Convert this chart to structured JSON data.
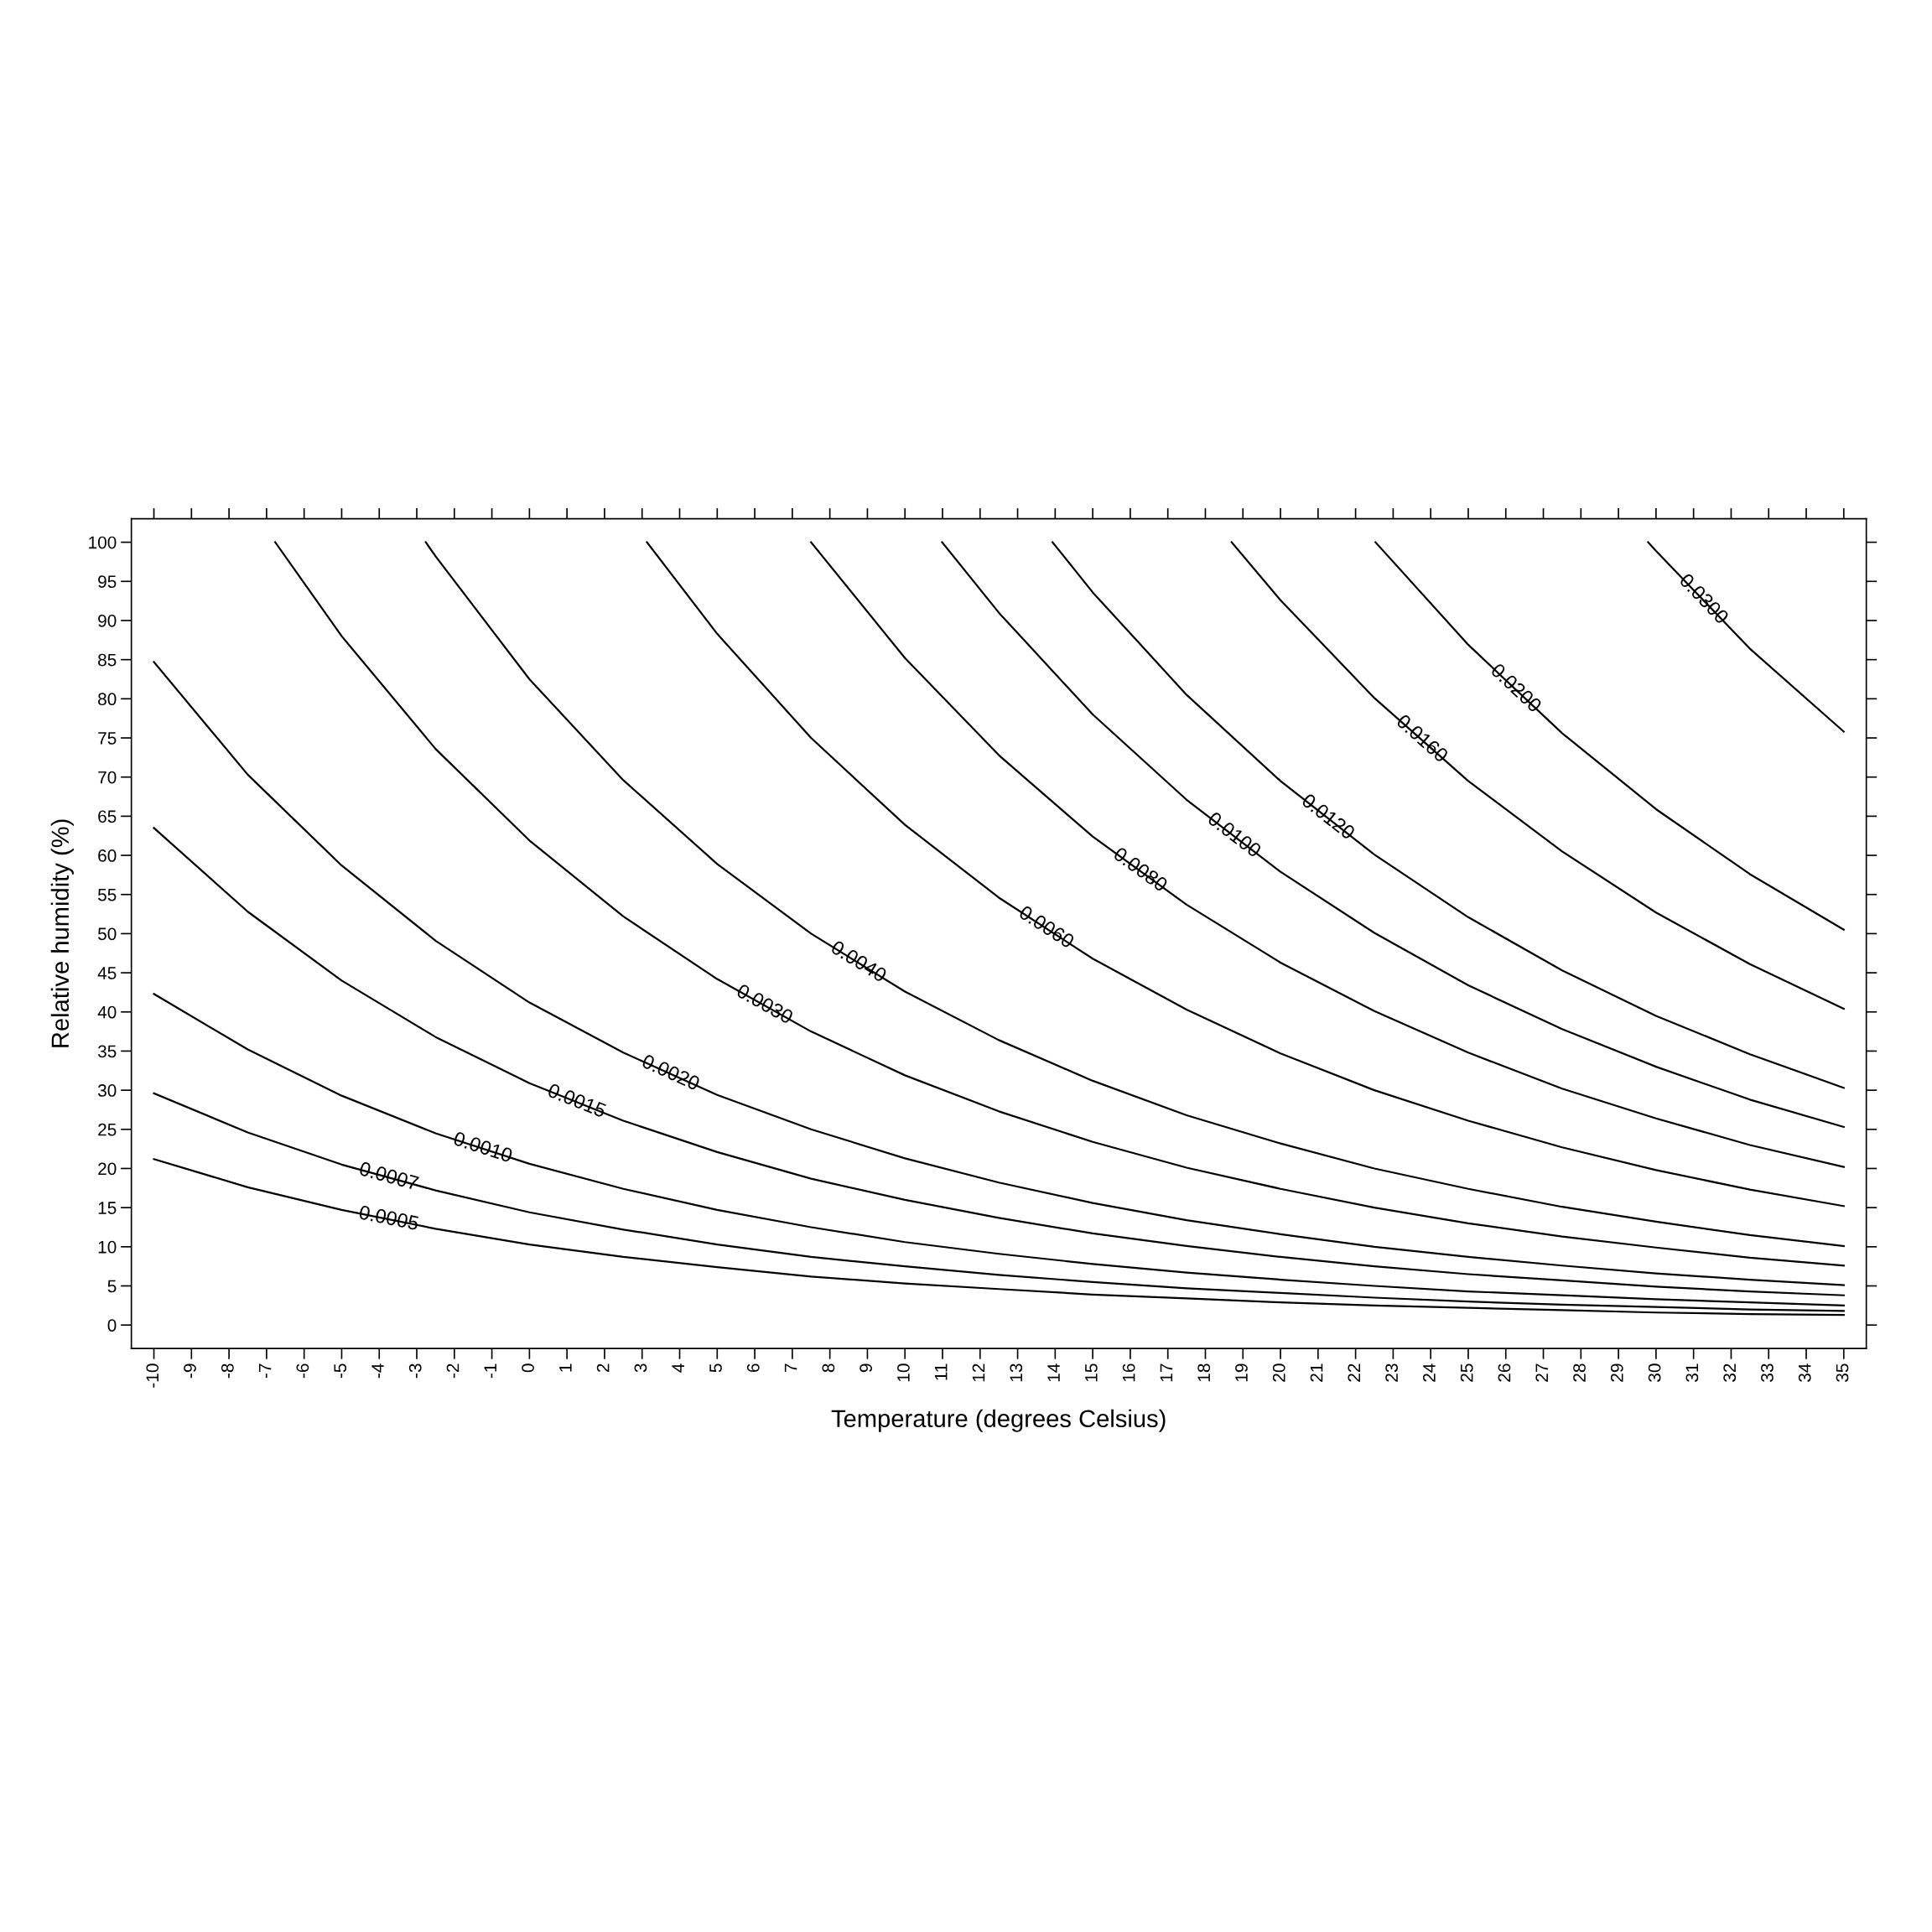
{
  "chart_data": {
    "type": "line",
    "xlabel": "Temperature (degrees Celsius)",
    "ylabel": "Relative humidity (%)",
    "xlim": [
      -10.6,
      35.6
    ],
    "ylim": [
      -3,
      103
    ],
    "xticks": [
      -10,
      -9,
      -8,
      -7,
      -6,
      -5,
      -4,
      -3,
      -2,
      -1,
      0,
      1,
      2,
      3,
      4,
      5,
      6,
      7,
      8,
      9,
      10,
      11,
      12,
      13,
      14,
      15,
      16,
      17,
      18,
      19,
      20,
      21,
      22,
      23,
      24,
      25,
      26,
      27,
      28,
      29,
      30,
      31,
      32,
      33,
      34,
      35
    ],
    "yticks": [
      0,
      5,
      10,
      15,
      20,
      25,
      30,
      35,
      40,
      45,
      50,
      55,
      60,
      65,
      70,
      75,
      80,
      85,
      90,
      95,
      100
    ],
    "grid": false,
    "legend": false,
    "marker": "none",
    "line_style": "solid",
    "series": [
      {
        "name": "0.0005",
        "color": "#000000",
        "x": [
          -10,
          -7.5,
          -5,
          -2.5,
          0,
          2.5,
          5,
          7.5,
          10,
          12.5,
          15,
          17.5,
          20,
          22.5,
          25,
          27.5,
          30,
          32.5,
          35
        ],
        "values": [
          21.2,
          17.6,
          14.7,
          12.3,
          10.3,
          8.7,
          7.4,
          6.2,
          5.3,
          4.6,
          3.9,
          3.4,
          2.9,
          2.5,
          2.2,
          1.9,
          1.6,
          1.4,
          1.3
        ]
      },
      {
        "name": "0.0007",
        "color": "#000000",
        "x": [
          -10,
          -7.5,
          -5,
          -2.5,
          0,
          2.5,
          5,
          7.5,
          10,
          12.5,
          15,
          17.5,
          20,
          22.5,
          25,
          27.5,
          30,
          32.5,
          35
        ],
        "values": [
          29.6,
          24.6,
          20.5,
          17.2,
          14.4,
          12.2,
          10.3,
          8.7,
          7.5,
          6.4,
          5.5,
          4.7,
          4.1,
          3.5,
          3.0,
          2.6,
          2.3,
          2.0,
          1.8
        ]
      },
      {
        "name": "0.0010",
        "color": "#000000",
        "x": [
          -10,
          -7.5,
          -5,
          -2.5,
          0,
          2.5,
          5,
          7.5,
          10,
          12.5,
          15,
          17.5,
          20,
          22.5,
          25,
          27.5,
          30,
          32.5,
          35
        ],
        "values": [
          42.3,
          35.2,
          29.3,
          24.5,
          20.6,
          17.4,
          14.7,
          12.5,
          10.6,
          9.1,
          7.8,
          6.7,
          5.8,
          5.0,
          4.3,
          3.8,
          3.3,
          2.9,
          2.5
        ]
      },
      {
        "name": "0.0015",
        "color": "#000000",
        "x": [
          -10,
          -7.5,
          -5,
          -2.5,
          0,
          2.5,
          5,
          7.5,
          10,
          12.5,
          15,
          17.5,
          20,
          22.5,
          25,
          27.5,
          30,
          32.5,
          35
        ],
        "values": [
          63.5,
          52.8,
          44.0,
          36.8,
          30.9,
          26.1,
          22.1,
          18.7,
          16.0,
          13.7,
          11.7,
          10.1,
          8.7,
          7.5,
          6.5,
          5.7,
          4.9,
          4.3,
          3.8
        ]
      },
      {
        "name": "0.0020",
        "color": "#000000",
        "x": [
          -10,
          -7.5,
          -5,
          -2.5,
          0,
          2.5,
          5,
          7.5,
          10,
          12.5,
          15,
          17.5,
          20,
          22.5,
          25,
          27.5,
          30,
          32.5,
          35
        ],
        "values": [
          84.7,
          70.3,
          58.7,
          49.1,
          41.2,
          34.8,
          29.4,
          25.0,
          21.3,
          18.2,
          15.6,
          13.4,
          11.6,
          10.0,
          8.7,
          7.6,
          6.6,
          5.8,
          5.1
        ]
      },
      {
        "name": "0.0030",
        "color": "#000000",
        "x": [
          -6.77,
          -5,
          -2.5,
          0,
          2.5,
          5,
          7.5,
          10,
          12.5,
          15,
          17.5,
          20,
          22.5,
          25,
          27.5,
          30,
          32.5,
          35
        ],
        "values": [
          100.0,
          88.0,
          73.6,
          61.9,
          52.2,
          44.2,
          37.5,
          31.9,
          27.3,
          23.4,
          20.1,
          17.4,
          15.0,
          13.0,
          11.3,
          9.9,
          8.6,
          7.6
        ]
      },
      {
        "name": "0.0040",
        "color": "#000000",
        "x": [
          -2.76,
          -2.5,
          0,
          2.5,
          5,
          7.5,
          10,
          12.5,
          15,
          17.5,
          20,
          22.5,
          25,
          27.5,
          30,
          32.5,
          35
        ],
        "values": [
          100.0,
          98.2,
          82.5,
          69.6,
          58.9,
          50.0,
          42.6,
          36.4,
          31.2,
          26.8,
          23.2,
          20.0,
          17.4,
          15.1,
          13.2,
          11.5,
          10.1
        ]
      },
      {
        "name": "0.0060",
        "color": "#000000",
        "x": [
          3.13,
          5,
          7.5,
          10,
          12.5,
          15,
          17.5,
          20,
          22.5,
          25,
          27.5,
          30,
          32.5,
          35
        ],
        "values": [
          100.0,
          88.3,
          75.0,
          63.9,
          54.6,
          46.8,
          40.3,
          34.7,
          30.0,
          26.1,
          22.7,
          19.8,
          17.3,
          15.2
        ]
      },
      {
        "name": "0.0080",
        "color": "#000000",
        "x": [
          7.5,
          10,
          12.5,
          15,
          17.5,
          20,
          22.5,
          25,
          27.5,
          30,
          32.5,
          35
        ],
        "values": [
          100.0,
          85.2,
          72.8,
          62.4,
          53.7,
          46.3,
          40.1,
          34.8,
          30.2,
          26.4,
          23.0,
          20.2
        ]
      },
      {
        "name": "0.0100",
        "color": "#000000",
        "x": [
          10.99,
          12.5,
          15,
          17.5,
          20,
          22.5,
          25,
          27.5,
          30,
          32.5,
          35
        ],
        "values": [
          100.0,
          91.0,
          78.0,
          67.1,
          57.9,
          50.1,
          43.4,
          37.8,
          33.0,
          28.8,
          25.3
        ]
      },
      {
        "name": "0.0120",
        "color": "#000000",
        "x": [
          13.93,
          15,
          17.5,
          20,
          22.5,
          25,
          27.5,
          30,
          32.5,
          35
        ],
        "values": [
          100.0,
          93.6,
          80.5,
          69.5,
          60.1,
          52.1,
          45.3,
          39.5,
          34.6,
          30.3
        ]
      },
      {
        "name": "0.0160",
        "color": "#000000",
        "x": [
          18.7,
          20,
          22.5,
          25,
          27.5,
          30,
          32.5,
          35
        ],
        "values": [
          100.0,
          92.6,
          80.1,
          69.5,
          60.5,
          52.7,
          46.1,
          40.4
        ]
      },
      {
        "name": "0.0200",
        "color": "#000000",
        "x": [
          22.53,
          25,
          27.5,
          30,
          32.5,
          35
        ],
        "values": [
          100.0,
          86.9,
          75.6,
          65.9,
          57.6,
          50.5
        ]
      },
      {
        "name": "0.0300",
        "color": "#000000",
        "x": [
          29.79,
          30,
          32.5,
          35
        ],
        "values": [
          100.0,
          98.9,
          86.4,
          75.8
        ]
      }
    ]
  }
}
